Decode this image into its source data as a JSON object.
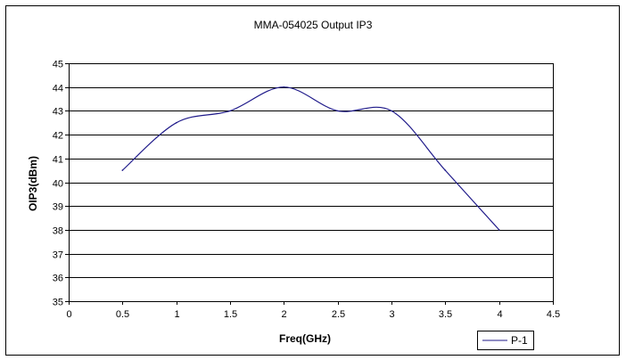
{
  "chart_data": {
    "type": "line",
    "title": "MMA-054025 Output IP3",
    "xlabel": "Freq(GHz)",
    "ylabel": "OIP3(dBm)",
    "xlim": [
      0,
      4.5
    ],
    "ylim": [
      35,
      45
    ],
    "x_ticks": [
      "0",
      "0.5",
      "1",
      "1.5",
      "2",
      "2.5",
      "3",
      "3.5",
      "4",
      "4.5"
    ],
    "y_ticks": [
      "35",
      "36",
      "37",
      "38",
      "39",
      "40",
      "41",
      "42",
      "43",
      "44",
      "45"
    ],
    "grid": "horizontal",
    "legend_position": "bottom-right",
    "series": [
      {
        "name": "P-1",
        "color": "#1f1a8a",
        "x": [
          0.5,
          1.0,
          1.5,
          2.0,
          2.5,
          3.0,
          3.5,
          4.0
        ],
        "values": [
          40.5,
          42.5,
          43.0,
          44.0,
          43.0,
          43.0,
          40.5,
          38.0
        ]
      }
    ]
  }
}
